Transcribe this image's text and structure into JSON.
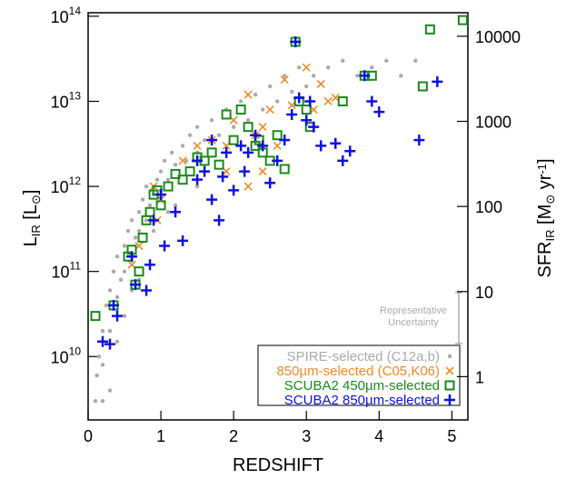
{
  "chart_data": {
    "type": "scatter",
    "xlabel": "REDSHIFT",
    "ylabel": [
      {
        "text": "L"
      },
      {
        "text": "IR",
        "sub": true
      },
      {
        "text": " [L"
      },
      {
        "text": "⊙",
        "sub": true
      },
      {
        "text": "]"
      }
    ],
    "y2label": [
      {
        "text": "SFR"
      },
      {
        "text": "IR",
        "sub": true
      },
      {
        "text": " [M"
      },
      {
        "text": "⊙",
        "sub": true
      },
      {
        "text": " yr"
      },
      {
        "text": "-1",
        "sup": true
      },
      {
        "text": "]"
      }
    ],
    "xlim": [
      0,
      5.22
    ],
    "xticks": [
      0,
      1,
      2,
      3,
      4,
      5
    ],
    "ylim": [
      1800000000.0,
      110000000000000.0
    ],
    "ylog": true,
    "yticks": [
      {
        "value": 10000000000.0,
        "label": "10",
        "exponent": "10"
      },
      {
        "value": 100000000000.0,
        "label": "10",
        "exponent": "11"
      },
      {
        "value": 1000000000000.0,
        "label": "10",
        "exponent": "12"
      },
      {
        "value": 10000000000000.0,
        "label": "10",
        "exponent": "13"
      },
      {
        "value": 100000000000000.0,
        "label": "10",
        "exponent": "14"
      }
    ],
    "y2lim": [
      0.31,
      18900
    ],
    "y2ticks": [
      1,
      10,
      100,
      1000,
      10000
    ],
    "annotation": [
      "Representative",
      "Uncertainty"
    ],
    "legend_position": "lower right",
    "series": [
      {
        "name": "SPIRE-selected (C12a,b)",
        "color": "#aaaaaa",
        "marker": "dot",
        "x": [
          0.1,
          0.12,
          0.15,
          0.2,
          0.2,
          0.25,
          0.3,
          0.3,
          0.35,
          0.4,
          0.4,
          0.45,
          0.5,
          0.5,
          0.55,
          0.6,
          0.6,
          0.65,
          0.7,
          0.7,
          0.75,
          0.8,
          0.8,
          0.85,
          0.9,
          0.95,
          1.0,
          1.0,
          1.05,
          1.1,
          1.15,
          1.2,
          1.3,
          1.35,
          1.4,
          1.5,
          1.5,
          1.6,
          1.7,
          1.8,
          1.9,
          2.0,
          2.1,
          2.2,
          2.3,
          2.4,
          2.5,
          2.6,
          2.7,
          2.8,
          2.9,
          3.0,
          3.1,
          3.3,
          3.5,
          3.7,
          3.9,
          4.1,
          4.3,
          4.5,
          0.3,
          0.5,
          0.7,
          0.9,
          1.2,
          1.5,
          0.4,
          0.6,
          0.2,
          1.1
        ],
        "values": [
          3000000000.0,
          6000000000.0,
          10000000000.0,
          20000000000.0,
          8000000000.0,
          40000000000.0,
          60000000000.0,
          20000000000.0,
          100000000000.0,
          50000000000.0,
          150000000000.0,
          80000000000.0,
          200000000000.0,
          100000000000.0,
          300000000000.0,
          150000000000.0,
          400000000000.0,
          250000000000.0,
          500000000000.0,
          300000000000.0,
          700000000000.0,
          400000000000.0,
          1000000000000.0,
          600000000000.0,
          800000000000.0,
          1200000000000.0,
          900000000000.0,
          1500000000000.0,
          2000000000000.0,
          1200000000000.0,
          2500000000000.0,
          1800000000000.0,
          3000000000000.0,
          2000000000000.0,
          4000000000000.0,
          2500000000000.0,
          5000000000000.0,
          3500000000000.0,
          6000000000000.0,
          4000000000000.0,
          8000000000000.0,
          5000000000000.0,
          10000000000000.0,
          6000000000000.0,
          12000000000000.0,
          8000000000000.0,
          15000000000000.0,
          10000000000000.0,
          20000000000000.0,
          13000000000000.0,
          25000000000000.0,
          15000000000000.0,
          20000000000000.0,
          25000000000000.0,
          30000000000000.0,
          20000000000000.0,
          25000000000000.0,
          30000000000000.0,
          20000000000000.0,
          30000000000000.0,
          4000000000.0,
          30000000000.0,
          80000000000.0,
          300000000000.0,
          600000000000.0,
          1000000000000.0,
          15000000000.0,
          60000000000.0,
          3000000000.0,
          500000000000.0
        ]
      },
      {
        "name": "850µm-selected (C05,K06)",
        "color": "#f08a24",
        "marker": "x",
        "x": [
          0.9,
          0.95,
          1.0,
          0.7,
          0.6,
          1.3,
          1.5,
          1.7,
          1.9,
          2.0,
          2.2,
          2.3,
          2.4,
          2.5,
          2.6,
          2.7,
          2.8,
          3.0,
          3.1,
          3.2,
          3.3,
          3.4,
          2.4,
          2.2,
          1.9
        ],
        "values": [
          1000000000000.0,
          400000000000.0,
          700000000000.0,
          200000000000.0,
          120000000000.0,
          2000000000000.0,
          3000000000000.0,
          3500000000000.0,
          3000000000000.0,
          6000000000000.0,
          12000000000000.0,
          4000000000000.0,
          5000000000000.0,
          8000000000000.0,
          3000000000000.0,
          18000000000000.0,
          9000000000000.0,
          25000000000000.0,
          8000000000000.0,
          16000000000000.0,
          10000000000000.0,
          11000000000000.0,
          1500000000000.0,
          1000000000000.0,
          1500000000000.0
        ]
      },
      {
        "name": "SCUBA2 450µm-selected",
        "color": "#1a8a1a",
        "marker": "square",
        "x": [
          0.1,
          0.35,
          0.55,
          0.6,
          0.65,
          0.7,
          0.75,
          0.8,
          0.85,
          0.9,
          0.95,
          1.0,
          1.1,
          1.2,
          1.3,
          1.4,
          1.5,
          1.6,
          1.7,
          1.8,
          1.9,
          2.0,
          2.1,
          2.2,
          2.3,
          2.35,
          2.4,
          2.5,
          2.6,
          2.7,
          2.85,
          2.9,
          3.0,
          3.05,
          3.5,
          3.8,
          3.9,
          4.6,
          4.7,
          5.15
        ],
        "values": [
          30000000000.0,
          40000000000.0,
          150000000000.0,
          180000000000.0,
          70000000000.0,
          100000000000.0,
          250000000000.0,
          400000000000.0,
          500000000000.0,
          800000000000.0,
          900000000000.0,
          600000000000.0,
          1000000000000.0,
          1400000000000.0,
          1200000000000.0,
          1500000000000.0,
          2200000000000.0,
          2000000000000.0,
          2500000000000.0,
          1800000000000.0,
          7000000000000.0,
          3500000000000.0,
          8000000000000.0,
          5000000000000.0,
          3000000000000.0,
          3500000000000.0,
          2500000000000.0,
          2000000000000.0,
          4000000000000.0,
          1600000000000.0,
          50000000000000.0,
          10000000000000.0,
          8000000000000.0,
          5000000000000.0,
          10000000000000.0,
          20000000000000.0,
          20000000000000.0,
          15000000000000.0,
          70000000000000.0,
          90000000000000.0
        ]
      },
      {
        "name": "SCUBA2 850µm-selected",
        "color": "#1010e0",
        "marker": "plus",
        "x": [
          0.2,
          0.3,
          0.35,
          0.4,
          0.6,
          0.65,
          0.8,
          0.85,
          0.9,
          1.0,
          1.05,
          1.2,
          1.3,
          1.5,
          1.5,
          1.6,
          1.7,
          1.8,
          1.85,
          1.9,
          2.0,
          2.1,
          2.15,
          2.2,
          2.3,
          2.4,
          2.5,
          2.6,
          2.7,
          2.8,
          2.85,
          2.9,
          3.0,
          3.05,
          3.1,
          3.2,
          3.4,
          3.5,
          3.6,
          3.8,
          3.9,
          4.0,
          4.55,
          4.8,
          1.7
        ],
        "values": [
          15000000000.0,
          14000000000.0,
          40000000000.0,
          30000000000.0,
          150000000000.0,
          70000000000.0,
          60000000000.0,
          120000000000.0,
          400000000000.0,
          800000000000.0,
          200000000000.0,
          500000000000.0,
          230000000000.0,
          2000000000000.0,
          1200000000000.0,
          1500000000000.0,
          700000000000.0,
          400000000000.0,
          1300000000000.0,
          2500000000000.0,
          900000000000.0,
          3000000000000.0,
          1500000000000.0,
          2500000000000.0,
          4000000000000.0,
          3000000000000.0,
          1100000000000.0,
          2000000000000.0,
          3500000000000.0,
          7000000000000.0,
          50000000000000.0,
          11000000000000.0,
          6000000000000.0,
          10000000000000.0,
          5000000000000.0,
          3000000000000.0,
          3200000000000.0,
          2000000000000.0,
          2600000000000.0,
          20000000000000.0,
          10000000000000.0,
          7500000000000.0,
          3500000000000.0,
          17000000000000.0,
          3500000000000.0
        ]
      }
    ]
  }
}
